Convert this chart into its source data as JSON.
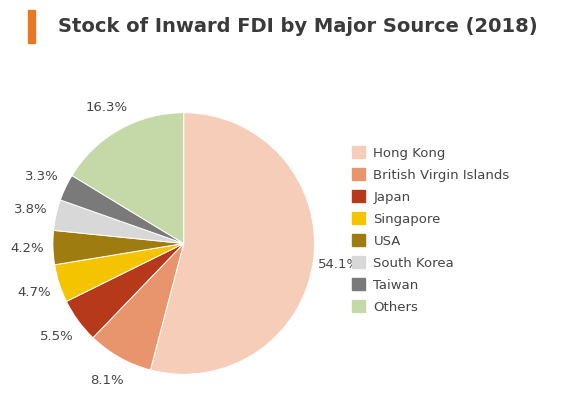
{
  "title": "Stock of Inward FDI by Major Source (2018)",
  "labels": [
    "Hong Kong",
    "British Virgin Islands",
    "Japan",
    "Singapore",
    "USA",
    "South Korea",
    "Taiwan",
    "Others"
  ],
  "values": [
    54.1,
    8.1,
    5.5,
    4.7,
    4.2,
    3.8,
    3.3,
    16.3
  ],
  "colors": [
    "#f5cdb8",
    "#e8956e",
    "#b5391a",
    "#f5c400",
    "#9e7c10",
    "#d8d8d8",
    "#7a7a7a",
    "#c5d9a8"
  ],
  "pct_labels": [
    "54.1%",
    "8.1%",
    "5.5%",
    "4.7%",
    "4.2%",
    "3.8%",
    "3.3%",
    "16.3%"
  ],
  "title_bar_color": "#e87722",
  "background_color": "#ffffff",
  "title_fontsize": 14,
  "label_fontsize": 9.5,
  "legend_fontsize": 9.5
}
